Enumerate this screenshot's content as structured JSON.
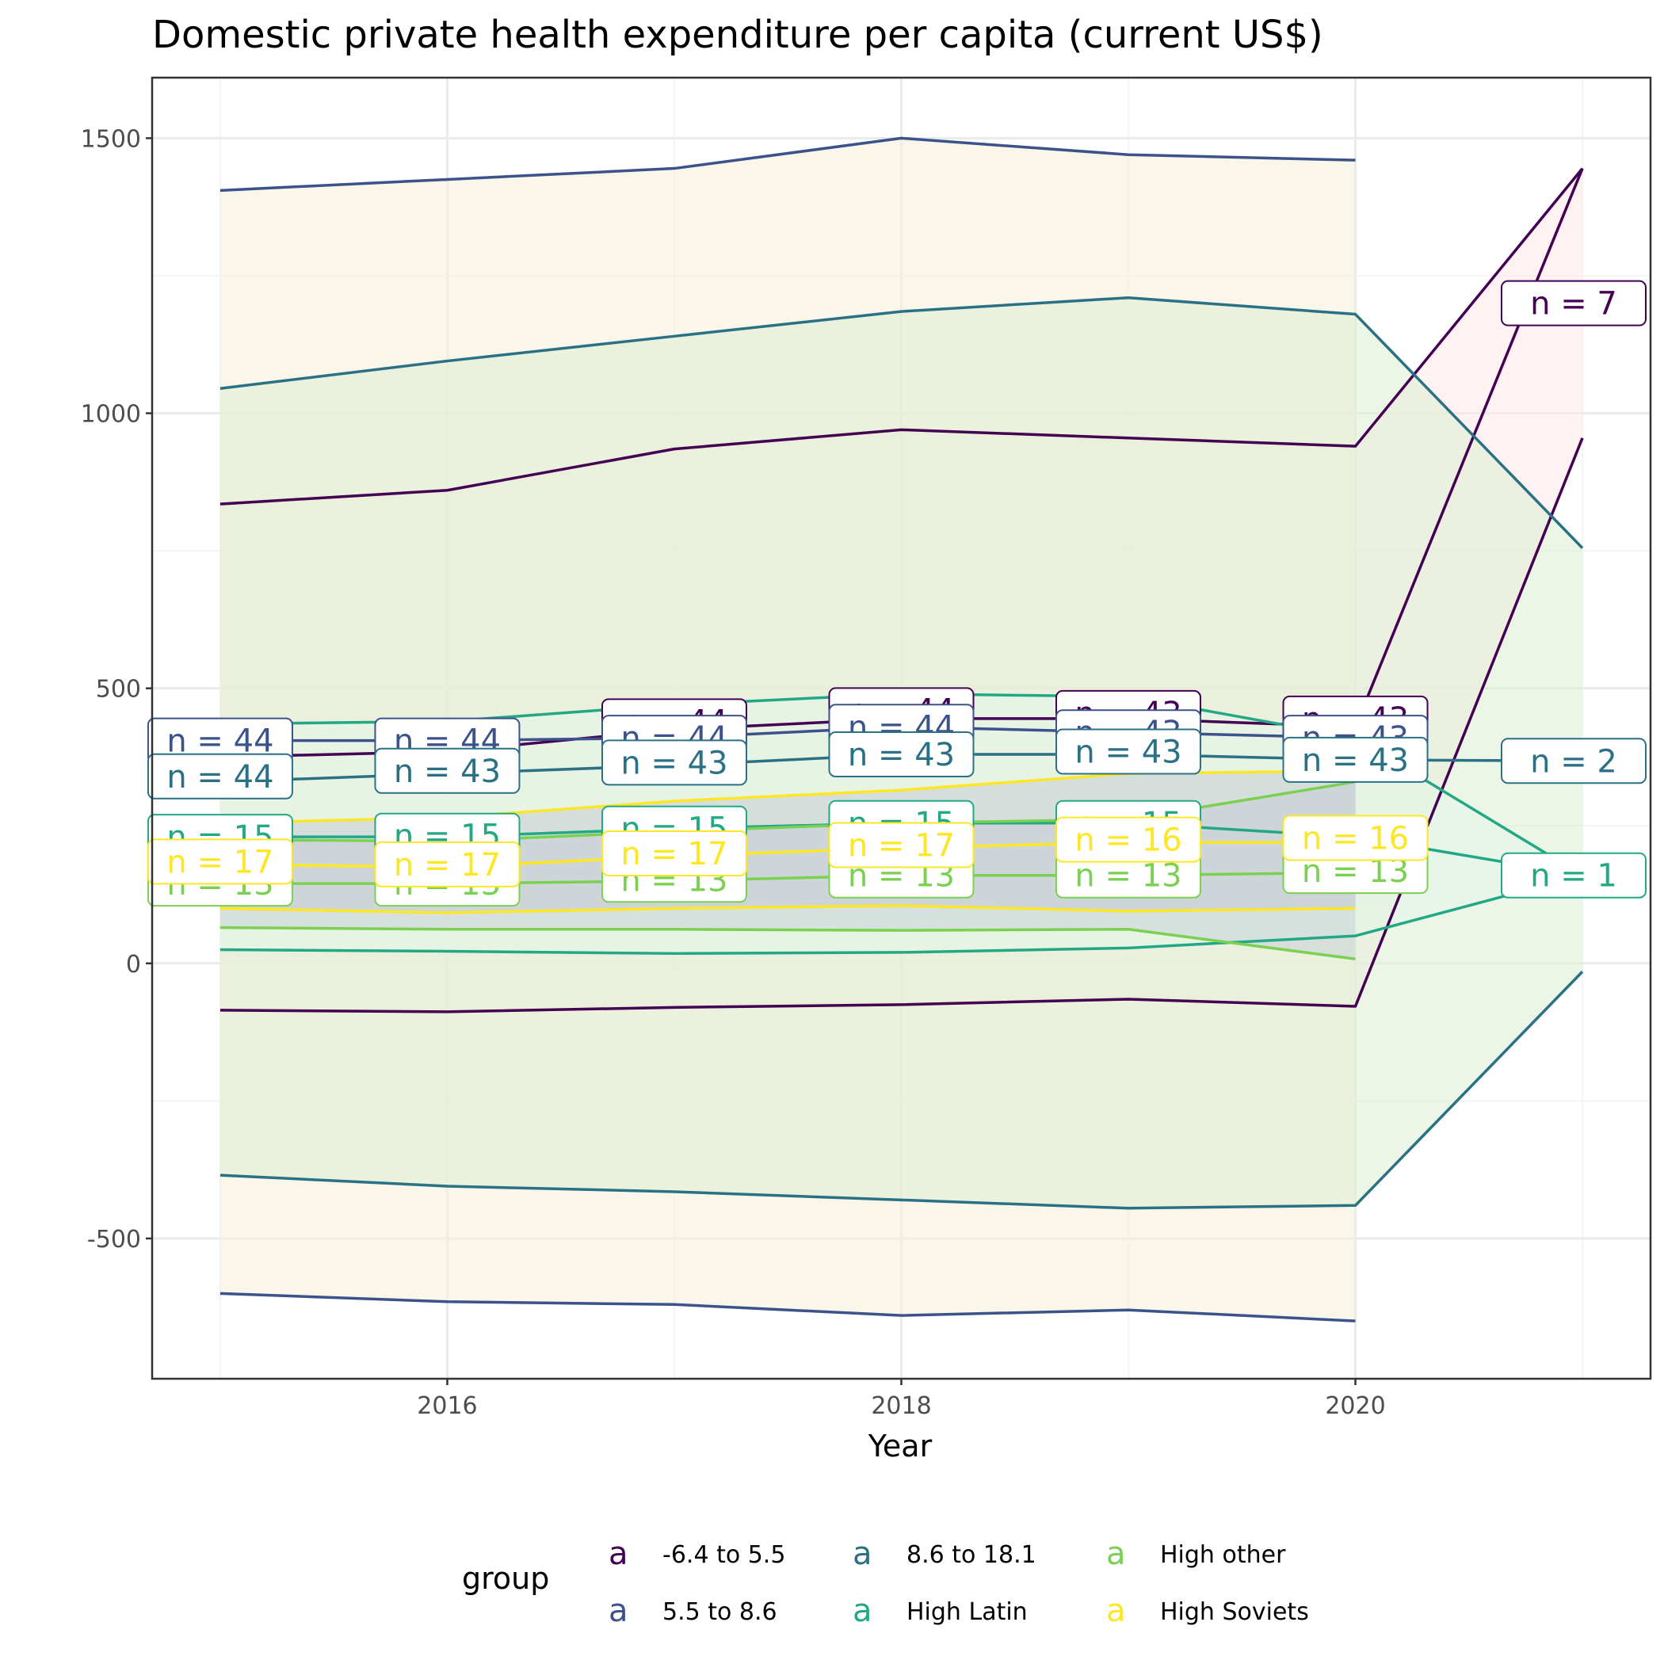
{
  "chart_data": {
    "type": "line",
    "title": "Domestic private health expenditure per capita (current US$)",
    "xlabel": "Year",
    "ylabel": "",
    "xlim": [
      2014.7,
      2021.3
    ],
    "ylim": [
      -755,
      1610
    ],
    "x_ticks": [
      2016,
      2018,
      2020
    ],
    "y_ticks": [
      -500,
      0,
      500,
      1000,
      1500
    ],
    "y_tick_labels": [
      "-500",
      "0",
      "500",
      "1000",
      "1500"
    ],
    "grid": true,
    "legend_position": "bottom",
    "legend_title": "group",
    "legend_key_glyph": "a",
    "series": [
      {
        "name": "-6.4 to 5.5",
        "color": "#440154",
        "band_color": "#FDE8E8",
        "x": [
          2015,
          2016,
          2017,
          2018,
          2019,
          2020,
          2021
        ],
        "mean": [
          375,
          385,
          425,
          445,
          445,
          430,
          1445
        ],
        "upper": [
          835,
          860,
          935,
          970,
          955,
          940,
          1445
        ],
        "lower": [
          -85,
          -88,
          -80,
          -75,
          -65,
          -78,
          955
        ],
        "n_labels": [
          {
            "x": 2017,
            "y": 440,
            "text": "n = 44"
          },
          {
            "x": 2018,
            "y": 460,
            "text": "n = 44"
          },
          {
            "x": 2019,
            "y": 455,
            "text": "n = 43"
          },
          {
            "x": 2020,
            "y": 445,
            "text": "n = 43"
          },
          {
            "x": 2021,
            "y": 1200,
            "text": "n = 7"
          }
        ]
      },
      {
        "name": "5.5 to 8.6",
        "color": "#3B528B",
        "band_color": "#F5F0D8",
        "x": [
          2015,
          2016,
          2017,
          2018,
          2019,
          2020
        ],
        "mean": [
          405,
          405,
          410,
          430,
          420,
          410
        ],
        "upper": [
          1405,
          1425,
          1445,
          1500,
          1470,
          1460
        ],
        "lower": [
          -600,
          -615,
          -620,
          -640,
          -630,
          -650
        ],
        "n_labels": [
          {
            "x": 2015,
            "y": 405,
            "text": "n = 44"
          },
          {
            "x": 2016,
            "y": 405,
            "text": "n = 44"
          },
          {
            "x": 2017,
            "y": 410,
            "text": "n = 44"
          },
          {
            "x": 2018,
            "y": 430,
            "text": "n = 44"
          },
          {
            "x": 2019,
            "y": 420,
            "text": "n = 43"
          },
          {
            "x": 2020,
            "y": 410,
            "text": "n = 43"
          }
        ]
      },
      {
        "name": "8.6 to 18.1",
        "color": "#21908C",
        "band_color": "#DDEFD3",
        "line_color": "#2A7185",
        "x": [
          2015,
          2016,
          2017,
          2018,
          2019,
          2020,
          2021
        ],
        "mean": [
          330,
          345,
          360,
          380,
          380,
          370,
          368
        ],
        "upper": [
          1045,
          1095,
          1140,
          1185,
          1210,
          1180,
          755
        ],
        "lower": [
          -385,
          -405,
          -415,
          -430,
          -445,
          -440,
          -15
        ],
        "n_labels": [
          {
            "x": 2015,
            "y": 340,
            "text": "n = 44"
          },
          {
            "x": 2016,
            "y": 350,
            "text": "n = 43"
          },
          {
            "x": 2017,
            "y": 365,
            "text": "n = 43"
          },
          {
            "x": 2018,
            "y": 380,
            "text": "n = 43"
          },
          {
            "x": 2019,
            "y": 385,
            "text": "n = 43"
          },
          {
            "x": 2020,
            "y": 370,
            "text": "n = 43"
          },
          {
            "x": 2021,
            "y": 368,
            "text": "n = 2"
          }
        ]
      },
      {
        "name": "High Latin",
        "color": "#22A884",
        "band_color": "#E4F5EA",
        "x": [
          2015,
          2016,
          2017,
          2018,
          2019,
          2020,
          2021
        ],
        "mean": [
          230,
          230,
          245,
          255,
          255,
          230,
          160
        ],
        "upper": [
          435,
          440,
          470,
          490,
          485,
          410,
          160
        ],
        "lower": [
          25,
          22,
          18,
          20,
          28,
          50,
          160
        ],
        "n_labels": [
          {
            "x": 2015,
            "y": 230,
            "text": "n = 15"
          },
          {
            "x": 2016,
            "y": 232,
            "text": "n = 15"
          },
          {
            "x": 2017,
            "y": 245,
            "text": "n = 15"
          },
          {
            "x": 2018,
            "y": 255,
            "text": "n = 15"
          },
          {
            "x": 2019,
            "y": 255,
            "text": "n = 15"
          },
          {
            "x": 2021,
            "y": 160,
            "text": "n = 1"
          }
        ]
      },
      {
        "name": "High other",
        "color": "#7AD151",
        "band_color": "#C8D0D8",
        "x": [
          2015,
          2016,
          2017,
          2018,
          2019,
          2020
        ],
        "mean": [
          145,
          145,
          150,
          160,
          160,
          165
        ],
        "upper": [
          225,
          222,
          240,
          255,
          262,
          330
        ],
        "lower": [
          65,
          62,
          62,
          60,
          62,
          8
        ],
        "n_labels": [
          {
            "x": 2015,
            "y": 145,
            "text": "n = 13"
          },
          {
            "x": 2016,
            "y": 145,
            "text": "n = 13"
          },
          {
            "x": 2017,
            "y": 152,
            "text": "n = 13"
          },
          {
            "x": 2018,
            "y": 160,
            "text": "n = 13"
          },
          {
            "x": 2019,
            "y": 160,
            "text": "n = 13"
          },
          {
            "x": 2020,
            "y": 168,
            "text": "n = 13"
          }
        ]
      },
      {
        "name": "High Soviets",
        "color": "#FDE725",
        "band_color": "#C8CCD6",
        "x": [
          2015,
          2016,
          2017,
          2018,
          2019,
          2020
        ],
        "mean": [
          180,
          175,
          195,
          210,
          220,
          220
        ],
        "upper": [
          255,
          265,
          295,
          315,
          345,
          350
        ],
        "lower": [
          100,
          92,
          100,
          105,
          95,
          100
        ],
        "n_labels": [
          {
            "x": 2015,
            "y": 185,
            "text": "n = 17"
          },
          {
            "x": 2016,
            "y": 180,
            "text": "n = 17"
          },
          {
            "x": 2017,
            "y": 200,
            "text": "n = 17"
          },
          {
            "x": 2018,
            "y": 215,
            "text": "n = 17"
          },
          {
            "x": 2019,
            "y": 225,
            "text": "n = 16"
          },
          {
            "x": 2020,
            "y": 228,
            "text": "n = 16"
          }
        ]
      }
    ]
  }
}
